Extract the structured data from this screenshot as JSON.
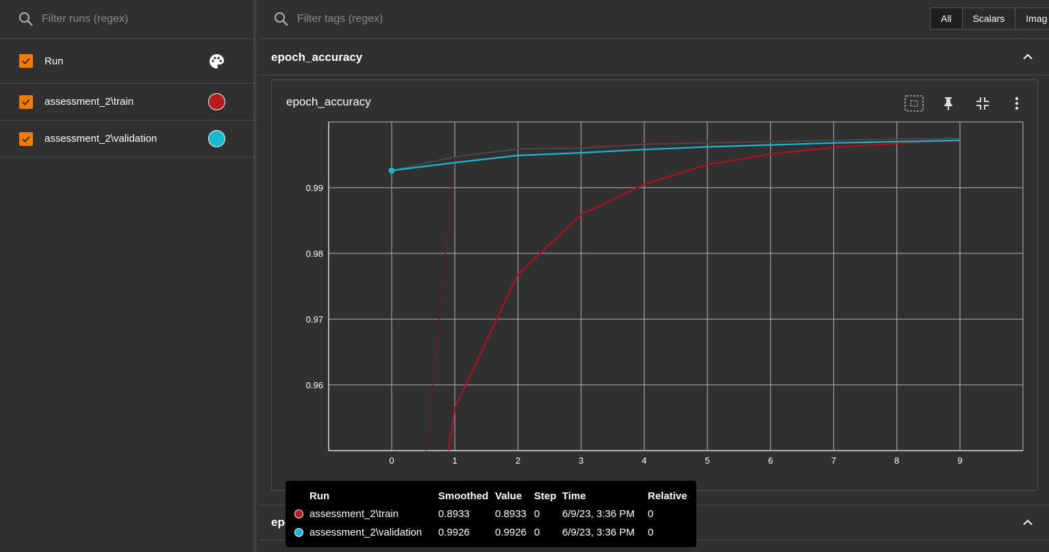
{
  "left_panel": {
    "filter_placeholder": "Filter runs (regex)",
    "header_label": "Run",
    "runs": [
      {
        "label": "assessment_2\\train",
        "color": "#b71c1c"
      },
      {
        "label": "assessment_2\\validation",
        "color": "#1ab8d0"
      }
    ]
  },
  "right_panel": {
    "filter_placeholder": "Filter tags (regex)",
    "tabs": [
      "All",
      "Scalars",
      "Imag"
    ],
    "active_tab": "All",
    "section_title": "epoch_accuracy",
    "card_title": "epoch_accuracy",
    "next_section_title": "epoch_loss"
  },
  "chart_data": {
    "type": "line",
    "title": "epoch_accuracy",
    "x_ticks": [
      "0",
      "1",
      "2",
      "3",
      "4",
      "5",
      "6",
      "7",
      "8",
      "9"
    ],
    "y_ticks": [
      "0.96",
      "0.97",
      "0.98",
      "0.99"
    ],
    "xlim": [
      -1,
      10
    ],
    "ylim": [
      0.95,
      1.0
    ],
    "series": [
      {
        "name": "assessment_2\\train",
        "role": "smoothed",
        "color": "#b01020",
        "x": [
          0.9,
          1,
          2,
          3,
          4,
          5,
          6,
          7,
          8,
          9
        ],
        "y": [
          0.95,
          0.9565,
          0.9768,
          0.9859,
          0.9905,
          0.9935,
          0.9951,
          0.9961,
          0.9967,
          0.9972
        ]
      },
      {
        "name": "assessment_2\\train",
        "role": "raw",
        "color": "#5a2228",
        "x": [
          0.55,
          1,
          2,
          3,
          4,
          5,
          6,
          7,
          8,
          9
        ],
        "y": [
          0.95,
          0.9945,
          0.996,
          0.9963,
          0.9967,
          0.997,
          0.9971,
          0.9972,
          0.9973,
          0.9974
        ]
      },
      {
        "name": "assessment_2\\validation",
        "role": "raw",
        "color": "#3f5256",
        "x": [
          0,
          1,
          2,
          3,
          4,
          5,
          6,
          7,
          8,
          9
        ],
        "y": [
          0.9926,
          0.9947,
          0.9959,
          0.996,
          0.9966,
          0.9968,
          0.997,
          0.9972,
          0.9974,
          0.9975
        ]
      },
      {
        "name": "assessment_2\\validation",
        "role": "smoothed",
        "color": "#1ab8d0",
        "x": [
          0,
          1,
          2,
          3,
          4,
          5,
          6,
          7,
          8,
          9
        ],
        "y": [
          0.9926,
          0.9938,
          0.9949,
          0.9953,
          0.9958,
          0.9962,
          0.9965,
          0.9968,
          0.997,
          0.9972
        ]
      }
    ]
  },
  "tooltip": {
    "headers": {
      "run": "Run",
      "smoothed": "Smoothed",
      "value": "Value",
      "step": "Step",
      "time": "Time",
      "relative": "Relative"
    },
    "rows": [
      {
        "run": "assessment_2\\train",
        "smoothed": "0.8933",
        "value": "0.8933",
        "step": "0",
        "time": "6/9/23, 3:36 PM",
        "relative": "0",
        "color": "#b71c1c"
      },
      {
        "run": "assessment_2\\validation",
        "smoothed": "0.9926",
        "value": "0.9926",
        "step": "0",
        "time": "6/9/23, 3:36 PM",
        "relative": "0",
        "color": "#1ab8d0"
      }
    ]
  },
  "colors": {
    "checkbox": "#f57c00",
    "background": "#303030"
  },
  "icons": [
    "search-icon",
    "palette-icon",
    "check-icon",
    "fit-domain-icon",
    "pin-icon",
    "collapse-icon",
    "more-vert-icon",
    "chevron-up-icon"
  ]
}
